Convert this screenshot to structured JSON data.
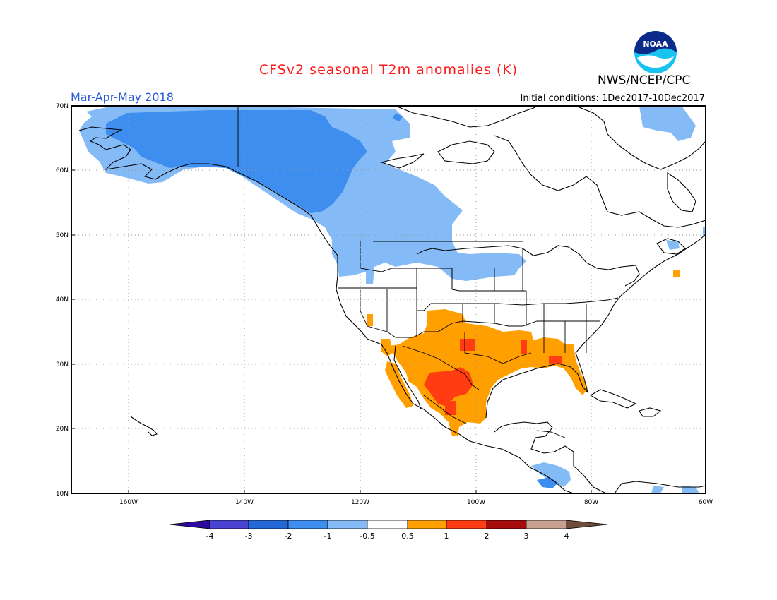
{
  "header": {
    "title": "CFSv2 seasonal T2m anomalies (K)",
    "period": "Mar-Apr-May 2018",
    "initial_conditions": "Initial conditions: 1Dec2017-10Dec2017",
    "agency": "NWS/NCEP/CPC",
    "logo_text": "NOAA"
  },
  "map": {
    "lat_labels": [
      "70N",
      "60N",
      "50N",
      "40N",
      "30N",
      "20N",
      "10N"
    ],
    "lon_labels": [
      "160W",
      "140W",
      "120W",
      "100W",
      "80W",
      "60W"
    ]
  },
  "legend": {
    "tick_labels": [
      "-4",
      "-3",
      "-2",
      "-1",
      "-0.5",
      "0.5",
      "1",
      "2",
      "3",
      "4"
    ],
    "colors": [
      "#2d0a9e",
      "#4a42d0",
      "#2468d8",
      "#3e8ef0",
      "#84baf5",
      "#ffffff",
      "#ff9f00",
      "#ff3c12",
      "#a80b0b",
      "#c8a092",
      "#6e4e3a"
    ]
  },
  "colors": {
    "title": "#ff1a1a",
    "period": "#2a5bd7",
    "cold_mid": "#3e8ef0",
    "cold_light": "#84baf5",
    "warm_mid": "#ff9f00",
    "warm_strong": "#ff3c12"
  }
}
